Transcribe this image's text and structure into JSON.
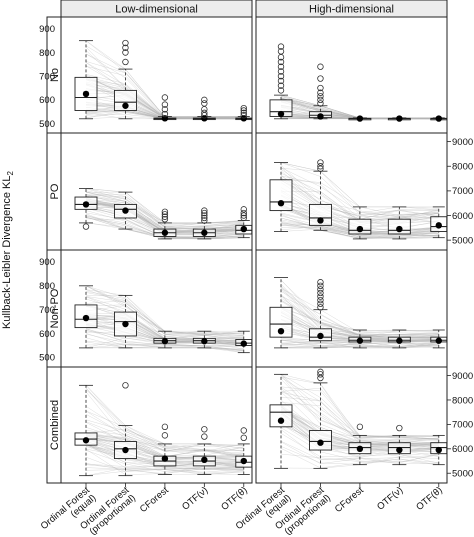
{
  "chart_data": {
    "type": "box",
    "ylabel": "Kullback-Leibler Divergence KL",
    "ylabel_sub": "2",
    "columns": [
      "Low-dimensional",
      "High-dimensional"
    ],
    "rows": [
      "No",
      "PO",
      "Non-PO",
      "Combined"
    ],
    "categories": [
      "Ordinal Forest\n(equal)",
      "Ordinal Forest\n(proportional)",
      "CForest",
      "OTF(ν)",
      "OTF(θ)"
    ],
    "row_ranges": [
      {
        "ylim": [
          460,
          950
        ],
        "ticks": [
          500,
          600,
          700,
          800,
          900
        ]
      },
      {
        "ylim": [
          4600,
          9350
        ],
        "ticks": [
          5000,
          6000,
          7000,
          8000,
          9000
        ]
      },
      {
        "ylim": [
          460,
          950
        ],
        "ticks": [
          500,
          600,
          700,
          800,
          900
        ]
      },
      {
        "ylim": [
          4600,
          9350
        ],
        "ticks": [
          5000,
          6000,
          7000,
          8000,
          9000
        ]
      }
    ],
    "tick_side": [
      "left",
      "right",
      "left",
      "right"
    ],
    "panels": [
      {
        "row": "No",
        "column": "Low-dimensional",
        "boxes": [
          {
            "lw": 520,
            "q1": 555,
            "med": 610,
            "q3": 695,
            "uw": 850,
            "mean": 625,
            "out": []
          },
          {
            "lw": 520,
            "q1": 555,
            "med": 590,
            "q3": 640,
            "uw": 730,
            "mean": 575,
            "out": [
              760,
              800,
              820,
              840
            ]
          },
          {
            "lw": 520,
            "q1": 520,
            "med": 521,
            "q3": 523,
            "uw": 530,
            "mean": 522,
            "out": [
              540,
              560,
              580,
              610
            ]
          },
          {
            "lw": 520,
            "q1": 520,
            "med": 521,
            "q3": 523,
            "uw": 530,
            "mean": 522,
            "out": [
              535,
              545,
              560,
              585,
              600
            ]
          },
          {
            "lw": 520,
            "q1": 520,
            "med": 521,
            "q3": 523,
            "uw": 530,
            "mean": 522,
            "out": [
              535,
              545,
              555,
              565
            ]
          }
        ]
      },
      {
        "row": "No",
        "column": "High-dimensional",
        "boxes": [
          {
            "lw": 520,
            "q1": 530,
            "med": 550,
            "q3": 600,
            "uw": 620,
            "mean": 540,
            "out": [
              640,
              660,
              680,
              700,
              720,
              740,
              760,
              780,
              805,
              825
            ]
          },
          {
            "lw": 520,
            "q1": 525,
            "med": 535,
            "q3": 550,
            "uw": 575,
            "mean": 530,
            "out": [
              585,
              600,
              615,
              630,
              650,
              690,
              740
            ]
          },
          {
            "lw": 520,
            "q1": 520,
            "med": 521,
            "q3": 522,
            "uw": 524,
            "mean": 521,
            "out": []
          },
          {
            "lw": 520,
            "q1": 520,
            "med": 521,
            "q3": 522,
            "uw": 524,
            "mean": 521,
            "out": []
          },
          {
            "lw": 520,
            "q1": 520,
            "med": 521,
            "q3": 522,
            "uw": 524,
            "mean": 521,
            "out": []
          }
        ]
      },
      {
        "row": "PO",
        "column": "Low-dimensional",
        "boxes": [
          {
            "lw": 5700,
            "q1": 6250,
            "med": 6450,
            "q3": 6750,
            "uw": 7100,
            "mean": 6450,
            "out": [
              5550
            ]
          },
          {
            "lw": 5450,
            "q1": 5900,
            "med": 6250,
            "q3": 6450,
            "uw": 6950,
            "mean": 6200,
            "out": []
          },
          {
            "lw": 5050,
            "q1": 5150,
            "med": 5300,
            "q3": 5450,
            "uw": 5700,
            "mean": 5300,
            "out": [
              5850,
              5950,
              6050,
              6150
            ]
          },
          {
            "lw": 5050,
            "q1": 5150,
            "med": 5300,
            "q3": 5450,
            "uw": 5700,
            "mean": 5300,
            "out": [
              5800,
              5900,
              6000,
              6100,
              6200
            ]
          },
          {
            "lw": 5100,
            "q1": 5250,
            "med": 5400,
            "q3": 5600,
            "uw": 5800,
            "mean": 5450,
            "out": [
              5900,
              6000,
              6100,
              6250
            ]
          }
        ]
      },
      {
        "row": "PO",
        "column": "High-dimensional",
        "boxes": [
          {
            "lw": 5350,
            "q1": 6200,
            "med": 6550,
            "q3": 7450,
            "uw": 8150,
            "mean": 6500,
            "out": []
          },
          {
            "lw": 5400,
            "q1": 5600,
            "med": 5900,
            "q3": 6450,
            "uw": 7800,
            "mean": 5800,
            "out": [
              7900,
              8000,
              8150
            ]
          },
          {
            "lw": 5050,
            "q1": 5250,
            "med": 5400,
            "q3": 5850,
            "uw": 6350,
            "mean": 5450,
            "out": []
          },
          {
            "lw": 5050,
            "q1": 5250,
            "med": 5400,
            "q3": 5850,
            "uw": 6350,
            "mean": 5450,
            "out": []
          },
          {
            "lw": 5100,
            "q1": 5350,
            "med": 5550,
            "q3": 5950,
            "uw": 6350,
            "mean": 5600,
            "out": []
          }
        ]
      },
      {
        "row": "Non-PO",
        "column": "Low-dimensional",
        "boxes": [
          {
            "lw": 540,
            "q1": 625,
            "med": 660,
            "q3": 720,
            "uw": 800,
            "mean": 665,
            "out": []
          },
          {
            "lw": 540,
            "q1": 590,
            "med": 650,
            "q3": 690,
            "uw": 760,
            "mean": 640,
            "out": []
          },
          {
            "lw": 540,
            "q1": 560,
            "med": 570,
            "q3": 580,
            "uw": 610,
            "mean": 568,
            "out": []
          },
          {
            "lw": 540,
            "q1": 560,
            "med": 570,
            "q3": 580,
            "uw": 610,
            "mean": 568,
            "out": []
          },
          {
            "lw": 520,
            "q1": 550,
            "med": 560,
            "q3": 575,
            "uw": 610,
            "mean": 558,
            "out": []
          }
        ]
      },
      {
        "row": "Non-PO",
        "column": "High-dimensional",
        "boxes": [
          {
            "lw": 540,
            "q1": 585,
            "med": 640,
            "q3": 710,
            "uw": 835,
            "mean": 610,
            "out": []
          },
          {
            "lw": 540,
            "q1": 570,
            "med": 585,
            "q3": 620,
            "uw": 700,
            "mean": 590,
            "out": [
              710,
              725,
              740,
              755,
              770,
              785,
              800,
              815
            ]
          },
          {
            "lw": 540,
            "q1": 565,
            "med": 572,
            "q3": 585,
            "uw": 615,
            "mean": 570,
            "out": []
          },
          {
            "lw": 540,
            "q1": 565,
            "med": 572,
            "q3": 585,
            "uw": 615,
            "mean": 570,
            "out": []
          },
          {
            "lw": 540,
            "q1": 565,
            "med": 572,
            "q3": 585,
            "uw": 615,
            "mean": 570,
            "out": []
          }
        ]
      },
      {
        "row": "Combined",
        "column": "Low-dimensional",
        "boxes": [
          {
            "lw": 4900,
            "q1": 6150,
            "med": 6400,
            "q3": 6650,
            "uw": 8600,
            "mean": 6350,
            "out": []
          },
          {
            "lw": 4900,
            "q1": 5600,
            "med": 6000,
            "q3": 6300,
            "uw": 6950,
            "mean": 5950,
            "out": [
              8600
            ]
          },
          {
            "lw": 4950,
            "q1": 5300,
            "med": 5500,
            "q3": 5700,
            "uw": 6200,
            "mean": 5600,
            "out": [
              6550,
              6900
            ]
          },
          {
            "lw": 4950,
            "q1": 5300,
            "med": 5500,
            "q3": 5700,
            "uw": 6200,
            "mean": 5550,
            "out": [
              6500,
              6800
            ]
          },
          {
            "lw": 4950,
            "q1": 5250,
            "med": 5450,
            "q3": 5700,
            "uw": 6200,
            "mean": 5500,
            "out": [
              6450,
              6750
            ]
          }
        ]
      },
      {
        "row": "Combined",
        "column": "High-dimensional",
        "boxes": [
          {
            "lw": 5200,
            "q1": 6900,
            "med": 7500,
            "q3": 7800,
            "uw": 9050,
            "mean": 7150,
            "out": []
          },
          {
            "lw": 5200,
            "q1": 5950,
            "med": 6300,
            "q3": 6750,
            "uw": 8700,
            "mean": 6250,
            "out": [
              8900,
              9050,
              9150
            ]
          },
          {
            "lw": 5350,
            "q1": 5800,
            "med": 6050,
            "q3": 6250,
            "uw": 6550,
            "mean": 6000,
            "out": [
              6900
            ]
          },
          {
            "lw": 5350,
            "q1": 5800,
            "med": 6050,
            "q3": 6250,
            "uw": 6550,
            "mean": 5950,
            "out": [
              6850
            ]
          },
          {
            "lw": 5350,
            "q1": 5800,
            "med": 6050,
            "q3": 6250,
            "uw": 6550,
            "mean": 5950,
            "out": []
          }
        ]
      }
    ]
  }
}
